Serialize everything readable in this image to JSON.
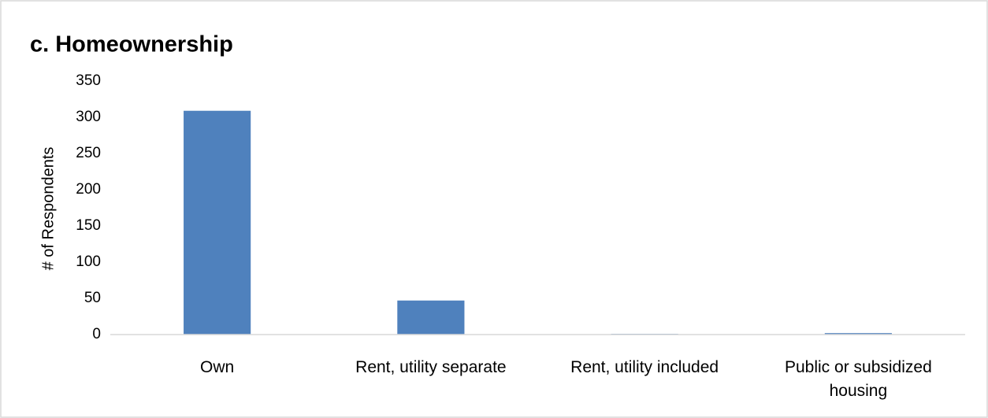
{
  "chart_data": {
    "type": "bar",
    "title": "c. Homeownership",
    "y_label": "# of Respondents",
    "categories": [
      "Own",
      "Rent, utility separate",
      "Rent, utility included",
      "Public or subsidized housing"
    ],
    "values": [
      309,
      47,
      1,
      2
    ],
    "color": "#4f81bd",
    "ylim": [
      0,
      350
    ],
    "yticks": [
      0,
      50,
      100,
      150,
      200,
      250,
      300,
      350
    ],
    "grid": false
  }
}
